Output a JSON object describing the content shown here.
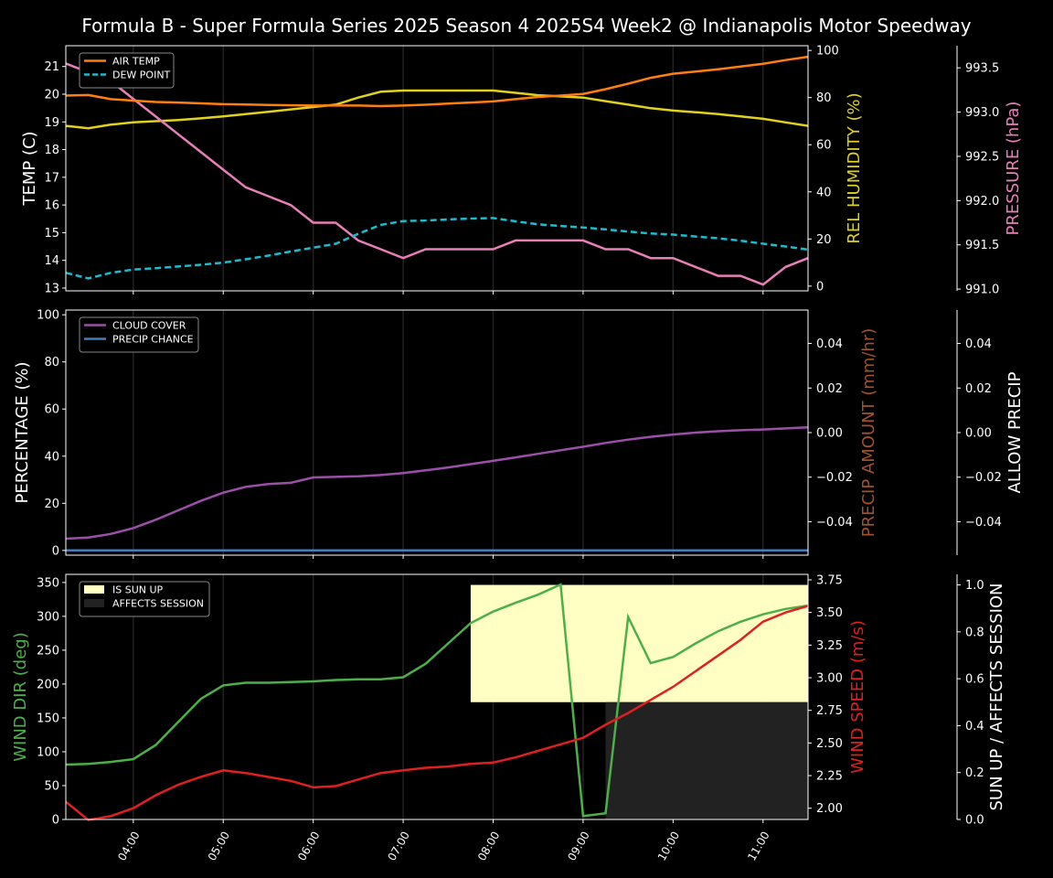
{
  "title": "Formula B - Super Formula Series 2025 Season 4 2025S4 Week2 @ Indianapolis Motor Speedway",
  "x_ticks": [
    "04:00",
    "05:00",
    "06:00",
    "07:00",
    "08:00",
    "09:00",
    "10:00",
    "11:00"
  ],
  "colors": {
    "air_temp": "#ff7f0e",
    "dew_point": "#17becf",
    "humidity": "#e0d21a",
    "pressure": "#e87fb8",
    "cloud": "#9b4fa8",
    "precip_chance": "#3f7fbf",
    "precip_amount": "#a0522d",
    "wind_dir": "#4daf4a",
    "wind_speed": "#e02020",
    "sun_up": "#ffffc4",
    "affects": "#222222"
  },
  "chart_data": [
    {
      "type": "line",
      "panel": "temperature",
      "x": [
        "03:15",
        "03:30",
        "03:45",
        "04:00",
        "04:15",
        "04:30",
        "04:45",
        "05:00",
        "05:15",
        "05:30",
        "05:45",
        "06:00",
        "06:15",
        "06:30",
        "06:45",
        "07:00",
        "07:15",
        "07:30",
        "07:45",
        "08:00",
        "08:15",
        "08:30",
        "08:45",
        "09:00",
        "09:15",
        "09:30",
        "09:45",
        "10:00",
        "10:15",
        "10:30",
        "10:45",
        "11:00",
        "11:15",
        "11:30"
      ],
      "ylabel_left": "TEMP (C)",
      "ylabel_right": "REL HUMIDITY (%)",
      "ylabel_far": "PRESSURE (hPa)",
      "ylim_left": [
        12.9,
        21.75
      ],
      "ylim_right": [
        -2,
        102
      ],
      "ylim_far": [
        990.98,
        993.75
      ],
      "yticks_left": [
        "13",
        "14",
        "15",
        "16",
        "17",
        "18",
        "19",
        "20",
        "21"
      ],
      "yticks_right": [
        "0",
        "20",
        "40",
        "60",
        "80",
        "100"
      ],
      "yticks_far": [
        "991.0",
        "991.5",
        "992.0",
        "992.5",
        "993.0",
        "993.5"
      ],
      "legend": [
        "AIR TEMP",
        "DEW POINT"
      ],
      "legend_placement": "top-left",
      "series": [
        {
          "name": "AIR TEMP",
          "axis": "left",
          "values": [
            19.95,
            19.97,
            19.82,
            19.77,
            19.72,
            19.7,
            19.67,
            19.64,
            19.63,
            19.61,
            19.6,
            19.59,
            19.59,
            19.59,
            19.57,
            19.59,
            19.62,
            19.66,
            19.7,
            19.74,
            19.82,
            19.9,
            19.95,
            20.01,
            20.18,
            20.38,
            20.59,
            20.74,
            20.82,
            20.9,
            21,
            21.1,
            21.23,
            21.35
          ]
        },
        {
          "name": "DEW POINT",
          "axis": "left",
          "values": [
            13.55,
            13.35,
            13.55,
            13.67,
            13.72,
            13.78,
            13.84,
            13.92,
            14.04,
            14.17,
            14.32,
            14.46,
            14.6,
            14.96,
            15.28,
            15.42,
            15.44,
            15.48,
            15.51,
            15.53,
            15.41,
            15.3,
            15.24,
            15.19,
            15.12,
            15.04,
            14.97,
            14.93,
            14.86,
            14.8,
            14.71,
            14.6,
            14.5,
            14.39
          ]
        },
        {
          "name": "REL HUMIDITY",
          "axis": "right",
          "values": [
            68,
            67,
            68.5,
            69.5,
            70,
            70.5,
            71.2,
            72,
            73,
            74,
            75,
            76,
            77,
            80,
            82.5,
            83,
            83,
            83,
            83,
            83,
            82,
            81,
            80.5,
            80,
            78.5,
            77,
            75.5,
            74.5,
            73.8,
            73,
            72,
            71,
            69.5,
            68
          ]
        },
        {
          "name": "PRESSURE",
          "axis": "far",
          "values": [
            993.55,
            993.45,
            993.35,
            993.15,
            992.95,
            992.75,
            992.55,
            992.35,
            992.15,
            992.05,
            991.95,
            991.75,
            991.75,
            991.55,
            991.45,
            991.35,
            991.45,
            991.45,
            991.45,
            991.45,
            991.55,
            991.55,
            991.55,
            991.55,
            991.45,
            991.45,
            991.35,
            991.35,
            991.25,
            991.15,
            991.15,
            991.05,
            991.25,
            991.35
          ]
        }
      ]
    },
    {
      "type": "line",
      "panel": "precipitation",
      "ylabel_left": "PERCENTAGE (%)",
      "ylabel_right": "PRECIP AMOUNT (mm/hr)",
      "ylabel_far": "ALLOW PRECIP",
      "ylim_left": [
        -2,
        102
      ],
      "ylim_right": [
        -0.055,
        0.055
      ],
      "yticks_left": [
        "0",
        "20",
        "40",
        "60",
        "80",
        "100"
      ],
      "yticks_right": [
        "−0.04",
        "−0.02",
        "0.00",
        "0.02",
        "0.04"
      ],
      "legend": [
        "CLOUD COVER",
        "PRECIP CHANCE"
      ],
      "legend_placement": "top-left",
      "series": [
        {
          "name": "CLOUD COVER",
          "values": [
            5,
            5.5,
            7,
            9.5,
            13,
            17,
            21,
            24.5,
            27,
            28.2,
            28.7,
            31,
            31.2,
            31.5,
            32,
            32.8,
            34,
            35.2,
            36.6,
            38,
            39.5,
            41,
            42.5,
            44,
            45.6,
            47,
            48.2,
            49.2,
            50,
            50.6,
            51,
            51.3,
            51.8,
            52.2
          ]
        },
        {
          "name": "PRECIP CHANCE",
          "values": [
            0,
            0,
            0,
            0,
            0,
            0,
            0,
            0,
            0,
            0,
            0,
            0,
            0,
            0,
            0,
            0,
            0,
            0,
            0,
            0,
            0,
            0,
            0,
            0,
            0,
            0,
            0,
            0,
            0,
            0,
            0,
            0,
            0,
            0
          ]
        }
      ]
    },
    {
      "type": "line",
      "panel": "wind",
      "ylabel_left": "WIND DIR (deg)",
      "ylabel_right": "WIND SPEED (m/s)",
      "ylabel_far": "SUN UP / AFFECTS SESSION",
      "ylim_left": [
        0,
        362
      ],
      "ylim_right": [
        1.914,
        3.792
      ],
      "ylim_far": [
        0,
        1.045
      ],
      "yticks_left": [
        "0",
        "50",
        "100",
        "150",
        "200",
        "250",
        "300",
        "350"
      ],
      "yticks_right": [
        "2.00",
        "2.25",
        "2.50",
        "2.75",
        "3.00",
        "3.25",
        "3.50",
        "3.75"
      ],
      "yticks_far": [
        "0.0",
        "0.2",
        "0.4",
        "0.6",
        "0.8",
        "1.0"
      ],
      "legend": [
        "IS SUN UP",
        "AFFECTS SESSION"
      ],
      "legend_placement": "top-left",
      "regions": [
        {
          "name": "IS SUN UP",
          "x_start": "07:45",
          "x_end": "11:30",
          "from": 0.5,
          "to": 1.0
        },
        {
          "name": "AFFECTS SESSION",
          "x_start": "09:15",
          "x_end": "11:30",
          "from": 0,
          "to": 0.5
        }
      ],
      "series": [
        {
          "name": "WIND DIR",
          "axis": "left",
          "values": [
            81,
            82,
            85,
            89,
            110,
            144,
            178,
            198,
            202,
            202,
            203,
            204,
            206,
            207,
            207,
            210,
            230,
            260,
            290,
            307,
            320,
            332,
            347,
            5,
            9,
            299,
            231,
            240,
            260,
            278,
            292,
            303,
            311,
            316
          ]
        },
        {
          "name": "WIND SPEED",
          "axis": "right",
          "values": [
            2.05,
            1.91,
            1.94,
            2.0,
            2.1,
            2.18,
            2.24,
            2.29,
            2.27,
            2.24,
            2.21,
            2.16,
            2.17,
            2.22,
            2.27,
            2.29,
            2.31,
            2.32,
            2.34,
            2.35,
            2.39,
            2.44,
            2.49,
            2.54,
            2.64,
            2.73,
            2.83,
            2.93,
            3.05,
            3.17,
            3.29,
            3.43,
            3.5,
            3.55
          ]
        }
      ]
    }
  ]
}
